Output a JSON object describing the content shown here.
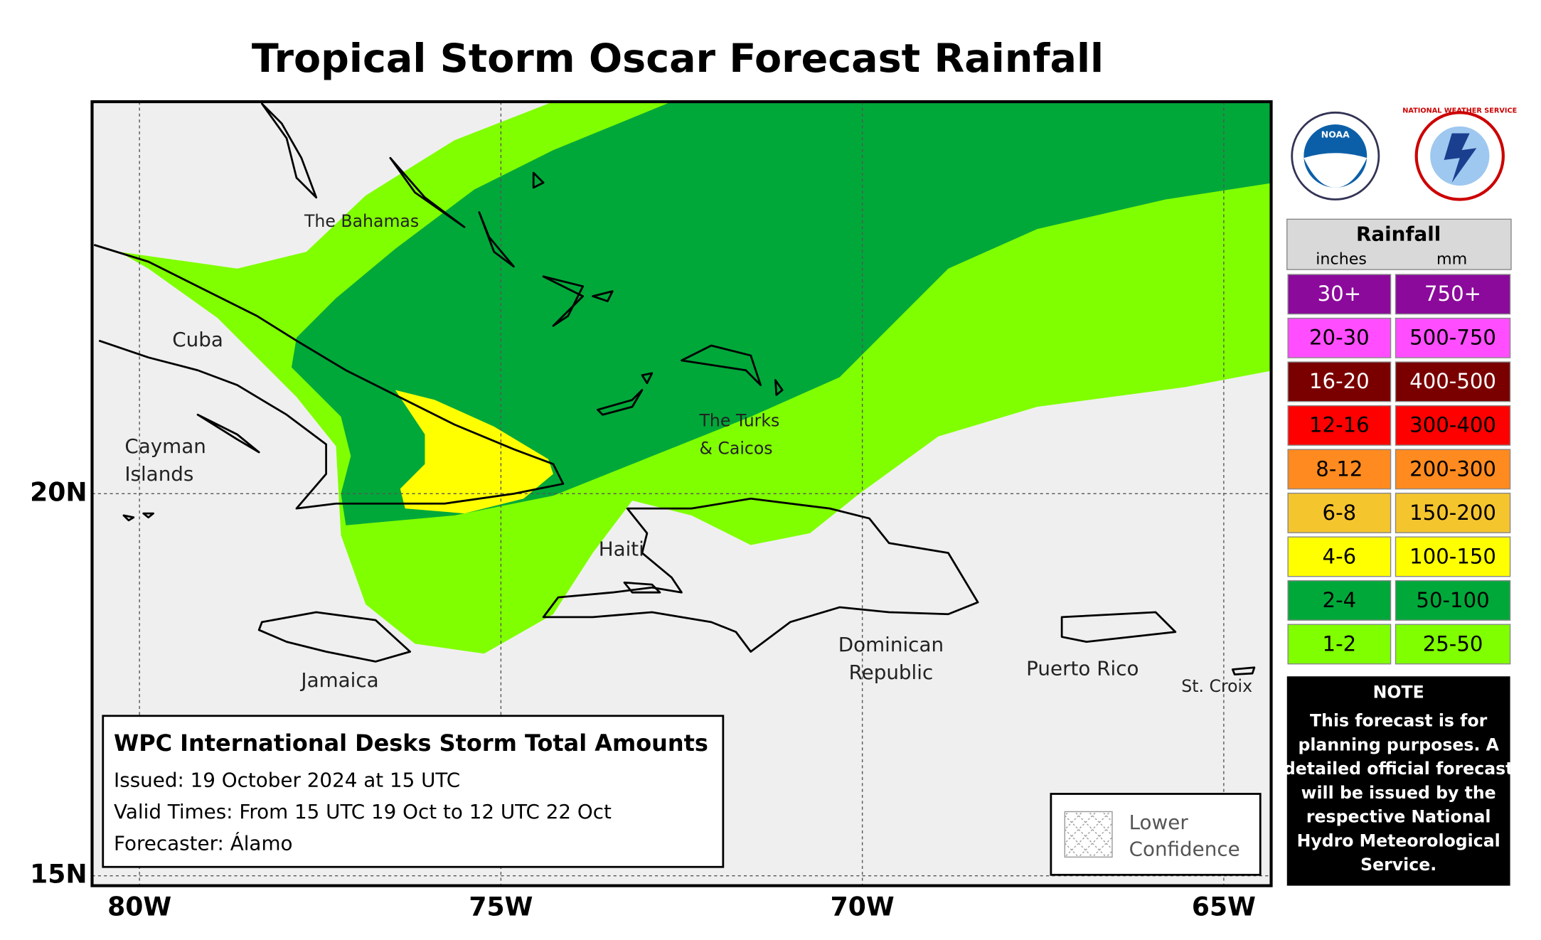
{
  "title": "Tropical Storm Oscar Forecast Rainfall",
  "map": {
    "place_labels": [
      {
        "lines": [
          "The Bahamas"
        ]
      },
      {
        "lines": [
          "Cuba"
        ]
      },
      {
        "lines": [
          "Cayman",
          "Islands"
        ]
      },
      {
        "lines": [
          "The Turks",
          "& Caicos"
        ]
      },
      {
        "lines": [
          "Haiti"
        ]
      },
      {
        "lines": [
          "Jamaica"
        ]
      },
      {
        "lines": [
          "Dominican",
          "Republic"
        ]
      },
      {
        "lines": [
          "Puerto Rico"
        ]
      },
      {
        "lines": [
          "St. Croix"
        ]
      }
    ],
    "lon_labels": [
      "80W",
      "75W",
      "70W",
      "65W"
    ],
    "lat_labels": [
      "20N",
      "15N"
    ]
  },
  "logos": {
    "noaa": "NOAA",
    "nws": "NATIONAL WEATHER SERVICE"
  },
  "legend": {
    "title": "Rainfall",
    "units": [
      "inches",
      "mm"
    ],
    "rows": [
      {
        "inches": "30+",
        "mm": "750+",
        "color": "#8b0a9b"
      },
      {
        "inches": "20-30",
        "mm": "500-750",
        "color": "#ff4dff"
      },
      {
        "inches": "16-20",
        "mm": "400-500",
        "color": "#7a0000"
      },
      {
        "inches": "12-16",
        "mm": "300-400",
        "color": "#ff0000"
      },
      {
        "inches": "8-12",
        "mm": "200-300",
        "color": "#ff8a1f"
      },
      {
        "inches": "6-8",
        "mm": "150-200",
        "color": "#f5c52e"
      },
      {
        "inches": "4-6",
        "mm": "100-150",
        "color": "#ffff00"
      },
      {
        "inches": "2-4",
        "mm": "50-100",
        "color": "#00a83a"
      },
      {
        "inches": "1-2",
        "mm": "25-50",
        "color": "#80ff00"
      }
    ]
  },
  "note": {
    "title": "NOTE",
    "lines": [
      "This forecast is for",
      "planning purposes. A",
      "detailed official forecast",
      "will be issued by the",
      "respective National",
      "Hydro Meteorological",
      "Service."
    ]
  },
  "info": {
    "title": "WPC International Desks Storm Total Amounts",
    "lines": [
      "Issued:  19 October 2024 at 15 UTC",
      "Valid Times:  From 15 UTC 19 Oct  to  12 UTC 22 Oct",
      "Forecaster:  Álamo"
    ]
  },
  "lower_confidence": [
    "Lower",
    "Confidence"
  ]
}
